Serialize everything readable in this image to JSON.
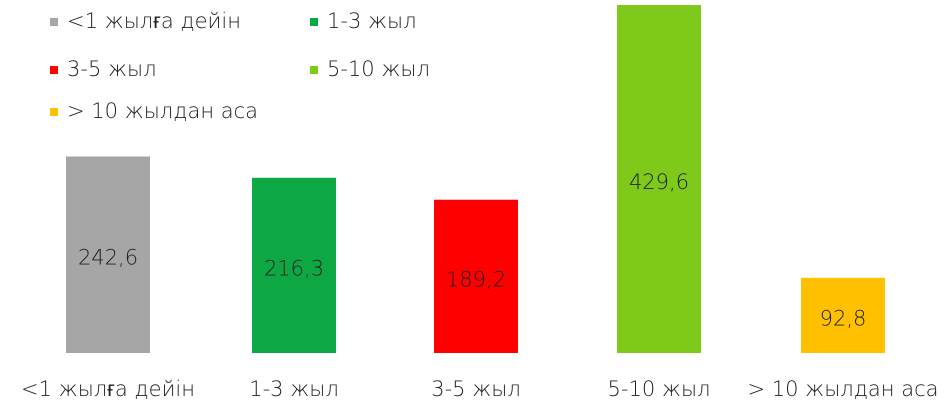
{
  "chart_data": {
    "type": "bar",
    "categories": [
      "<1 жылға дейін",
      "1-3 жыл",
      "3-5 жыл",
      "5-10 жыл",
      "> 10 жылдан аса"
    ],
    "values": [
      242.6,
      216.3,
      189.2,
      429.6,
      92.8
    ],
    "value_labels": [
      "242,6",
      "216,3",
      "189,2",
      "429,6",
      "92,8"
    ],
    "colors": [
      "#a6a6a6",
      "#0da843",
      "#ff0000",
      "#7ec91a",
      "#ffc000"
    ],
    "legend": "top-left"
  }
}
